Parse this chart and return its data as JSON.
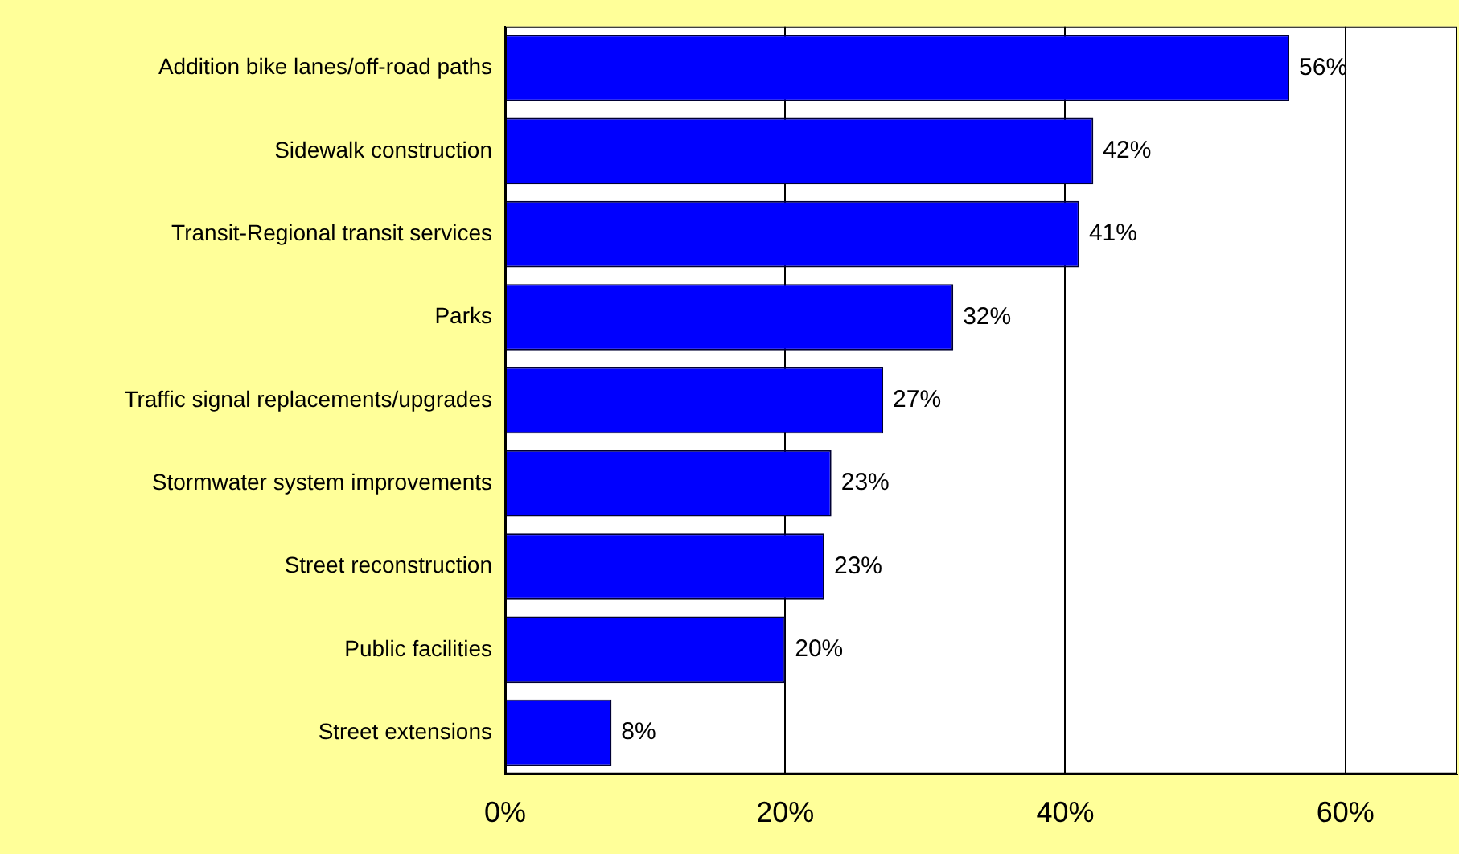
{
  "chart_data": {
    "type": "bar",
    "orientation": "horizontal",
    "categories": [
      "Addition bike lanes/off-road paths",
      "Sidewalk construction",
      "Transit-Regional transit services",
      "Parks",
      "Traffic signal replacements/upgrades",
      "Stormwater system improvements",
      "Street reconstruction",
      "Public facilities",
      "Street extensions"
    ],
    "values": [
      56,
      42,
      41,
      32,
      27,
      23.3,
      22.8,
      20,
      7.6
    ],
    "value_labels": [
      "56%",
      "42%",
      "41%",
      "32%",
      "27%",
      "23%",
      "23%",
      "20%",
      "8%"
    ],
    "color": "#0000ff",
    "xlim": [
      0,
      68
    ],
    "xticks": [
      {
        "value": 0,
        "label": "0%"
      },
      {
        "value": 20,
        "label": "20%"
      },
      {
        "value": 40,
        "label": "40%"
      },
      {
        "value": 60,
        "label": "60%"
      }
    ],
    "grid": "x",
    "legend": false
  }
}
